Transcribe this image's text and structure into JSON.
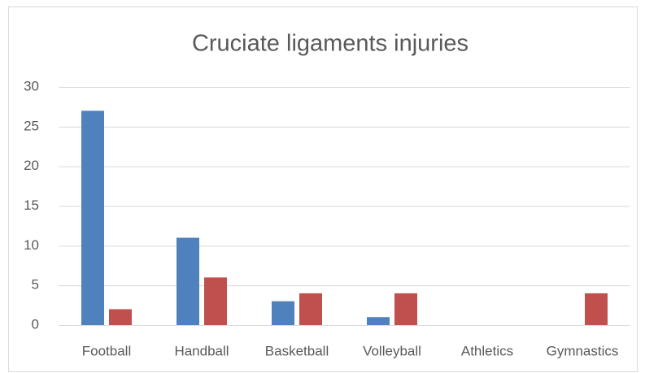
{
  "chart_data": {
    "type": "bar",
    "title": "Cruciate ligaments injuries",
    "categories": [
      "Football",
      "Handball",
      "Basketball",
      "Volleyball",
      "Athletics",
      "Gymnastics"
    ],
    "series": [
      {
        "color": "#4f81bd",
        "values": [
          27,
          11,
          3,
          1,
          0,
          0
        ]
      },
      {
        "color": "#c0504d",
        "values": [
          2,
          6,
          4,
          4,
          0,
          4
        ]
      }
    ],
    "ylim": [
      0,
      30
    ],
    "yticks": [
      0,
      5,
      10,
      15,
      20,
      25,
      30
    ],
    "grid": true
  }
}
